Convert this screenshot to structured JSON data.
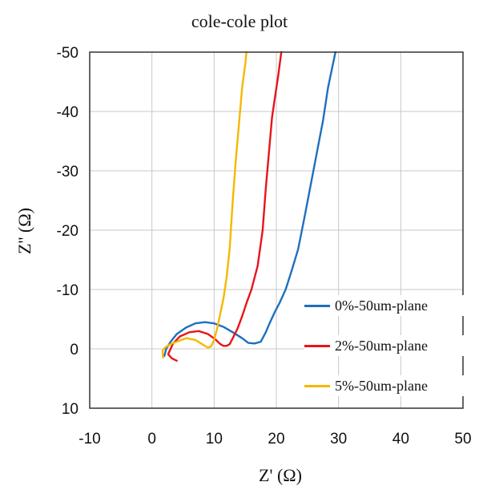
{
  "chart_data": {
    "type": "line",
    "title": "cole-cole plot",
    "xlabel": "Z' (Ω)",
    "ylabel": "Z'' (Ω)",
    "xlim": [
      -10,
      50
    ],
    "ylim": [
      10,
      -50
    ],
    "xticks": [
      "-10",
      "0",
      "10",
      "20",
      "30",
      "40",
      "50"
    ],
    "yticks": [
      "-50",
      "-40",
      "-30",
      "-20",
      "-10",
      "0",
      "10"
    ],
    "grid": true,
    "legend_position": "bottom-right",
    "series": [
      {
        "name": "0%-50um-plane",
        "color": "#1f6fbf",
        "x": [
          2.0,
          2.3,
          3.0,
          4.0,
          5.5,
          7.0,
          8.5,
          10.0,
          11.5,
          13.0,
          14.5,
          15.5,
          16.5,
          17.5,
          18.3,
          19.0,
          19.8,
          20.5,
          21.5,
          22.5,
          23.5,
          24.5,
          25.5,
          26.5,
          27.5,
          28.3,
          29.0,
          29.5
        ],
        "y": [
          1.2,
          0.0,
          -1.2,
          -2.5,
          -3.6,
          -4.3,
          -4.5,
          -4.3,
          -3.7,
          -2.8,
          -1.8,
          -1.0,
          -0.9,
          -1.2,
          -2.8,
          -4.5,
          -6.3,
          -7.7,
          -10.0,
          -13.3,
          -16.8,
          -22.0,
          -27.5,
          -33.0,
          -38.5,
          -44.0,
          -47.5,
          -50.0
        ]
      },
      {
        "name": "2%-50um-plane",
        "color": "#e8141b",
        "x": [
          4.0,
          3.2,
          2.6,
          3.4,
          4.5,
          6.0,
          7.5,
          9.0,
          10.2,
          11.0,
          11.5,
          12.0,
          12.5,
          13.0,
          13.8,
          14.5,
          15.3,
          16.0,
          17.0,
          17.8,
          18.3,
          18.8,
          19.3,
          19.8,
          20.3,
          20.8
        ],
        "y": [
          2.0,
          1.6,
          0.9,
          -0.9,
          -2.1,
          -2.8,
          -3.0,
          -2.5,
          -1.6,
          -0.8,
          -0.5,
          -0.5,
          -0.8,
          -1.8,
          -3.5,
          -5.5,
          -8.0,
          -10.0,
          -14.0,
          -20.0,
          -27.0,
          -33.0,
          -39.0,
          -42.5,
          -46.0,
          -50.0
        ]
      },
      {
        "name": "5%-50um-plane",
        "color": "#f5b800",
        "x": [
          1.8,
          1.7,
          2.2,
          3.0,
          4.0,
          5.5,
          7.0,
          8.2,
          9.0,
          9.5,
          10.0,
          10.5,
          11.0,
          11.5,
          12.0,
          12.5,
          13.0,
          13.5,
          14.0,
          14.5,
          15.0,
          15.2
        ],
        "y": [
          1.5,
          0.3,
          -0.3,
          -0.8,
          -1.2,
          -1.8,
          -1.5,
          -0.7,
          -0.2,
          -0.4,
          -1.5,
          -3.5,
          -6.0,
          -8.5,
          -12.0,
          -17.0,
          -25.0,
          -32.0,
          -38.0,
          -44.0,
          -48.0,
          -50.0
        ]
      }
    ]
  }
}
